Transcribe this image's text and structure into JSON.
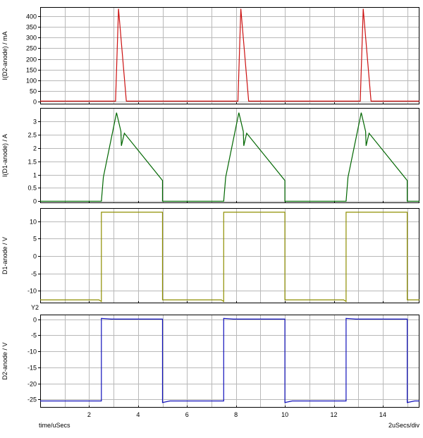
{
  "window": {
    "background": "#ffffff"
  },
  "colors": {
    "grid": "#b9b9b9",
    "border": "#000000",
    "text": "#000000",
    "plot_bg": "#ffffff"
  },
  "x_axis": {
    "min": 0,
    "max": 15.5,
    "grid_step": 1,
    "ticks": [
      2,
      4,
      6,
      8,
      10,
      12,
      14
    ],
    "tick_labels": [
      "2",
      "4",
      "6",
      "8",
      "10",
      "12",
      "14"
    ],
    "unit_label": "time/uSecs",
    "scale_label": "2uSecs/div",
    "y2_marker": "Y2"
  },
  "chart_data": [
    {
      "type": "line",
      "ylabel": "I(D2-anode) / mA",
      "color": "#cc1111",
      "ylim": [
        -12,
        442
      ],
      "yticks": [
        0,
        50,
        100,
        150,
        200,
        250,
        300,
        350,
        400
      ],
      "ytick_labels": [
        "0",
        "50",
        "100",
        "150",
        "200",
        "250",
        "300",
        "350",
        "400"
      ],
      "points": [
        [
          0,
          3
        ],
        [
          3.08,
          3
        ],
        [
          3.2,
          434
        ],
        [
          3.52,
          3
        ],
        [
          8.08,
          3
        ],
        [
          8.2,
          434
        ],
        [
          8.52,
          3
        ],
        [
          13.08,
          3
        ],
        [
          13.2,
          434
        ],
        [
          13.52,
          3
        ],
        [
          15.5,
          3
        ]
      ]
    },
    {
      "type": "line",
      "ylabel": "I(D1-anode) / A",
      "color": "#006600",
      "ylim": [
        -0.07,
        3.5
      ],
      "yticks": [
        0,
        0.5,
        1,
        1.5,
        2,
        2.5,
        3
      ],
      "ytick_labels": [
        "0",
        "0.5",
        "1",
        "1.5",
        "2",
        "2.5",
        "3"
      ],
      "points": [
        [
          0,
          0
        ],
        [
          2.5,
          0
        ],
        [
          2.58,
          0.9
        ],
        [
          3.12,
          3.32
        ],
        [
          3.3,
          2.62
        ],
        [
          3.32,
          2.08
        ],
        [
          3.44,
          2.55
        ],
        [
          5,
          0.78
        ],
        [
          5,
          0
        ],
        [
          7.5,
          0
        ],
        [
          7.58,
          0.9
        ],
        [
          8.12,
          3.32
        ],
        [
          8.3,
          2.62
        ],
        [
          8.32,
          2.08
        ],
        [
          8.44,
          2.55
        ],
        [
          10,
          0.78
        ],
        [
          10,
          0
        ],
        [
          12.5,
          0
        ],
        [
          12.58,
          0.9
        ],
        [
          13.12,
          3.32
        ],
        [
          13.3,
          2.62
        ],
        [
          13.32,
          2.08
        ],
        [
          13.44,
          2.55
        ],
        [
          15,
          0.78
        ],
        [
          15,
          0
        ],
        [
          15.5,
          0
        ]
      ]
    },
    {
      "type": "line",
      "ylabel": "D1-anode / V",
      "color": "#8f8f00",
      "ylim": [
        -13.6,
        13.8
      ],
      "yticks": [
        -10,
        -5,
        0,
        5,
        10
      ],
      "ytick_labels": [
        "-10",
        "-5",
        "0",
        "5",
        "10"
      ],
      "points": [
        [
          0,
          -12.6
        ],
        [
          2.4,
          -12.6
        ],
        [
          2.5,
          -13.1
        ],
        [
          2.5,
          12.6
        ],
        [
          5,
          12.6
        ],
        [
          5,
          -12.6
        ],
        [
          7.4,
          -12.6
        ],
        [
          7.5,
          -13.1
        ],
        [
          7.5,
          12.6
        ],
        [
          10,
          12.6
        ],
        [
          10,
          -12.6
        ],
        [
          12.4,
          -12.6
        ],
        [
          12.5,
          -13.1
        ],
        [
          12.5,
          12.6
        ],
        [
          15,
          12.6
        ],
        [
          15,
          -12.6
        ],
        [
          15.5,
          -12.6
        ]
      ]
    },
    {
      "type": "line",
      "ylabel": "D2-anode / V",
      "color": "#1111bb",
      "ylim": [
        -27.6,
        1.5
      ],
      "yticks": [
        -25,
        -20,
        -15,
        -10,
        -5,
        0
      ],
      "ytick_labels": [
        "-25",
        "-20",
        "-15",
        "-10",
        "-5",
        "0"
      ],
      "points": [
        [
          0,
          -25.5
        ],
        [
          2.5,
          -25.5
        ],
        [
          2.5,
          0.3
        ],
        [
          2.9,
          0.1
        ],
        [
          5,
          0.1
        ],
        [
          5,
          -26
        ],
        [
          5.3,
          -25.5
        ],
        [
          7.5,
          -25.5
        ],
        [
          7.5,
          0.3
        ],
        [
          7.9,
          0.1
        ],
        [
          10,
          0.1
        ],
        [
          10,
          -26
        ],
        [
          10.3,
          -25.5
        ],
        [
          12.5,
          -25.5
        ],
        [
          12.5,
          0.3
        ],
        [
          12.9,
          0.1
        ],
        [
          15,
          0.1
        ],
        [
          15,
          -26
        ],
        [
          15.3,
          -25.5
        ],
        [
          15.5,
          -25.5
        ]
      ]
    }
  ]
}
